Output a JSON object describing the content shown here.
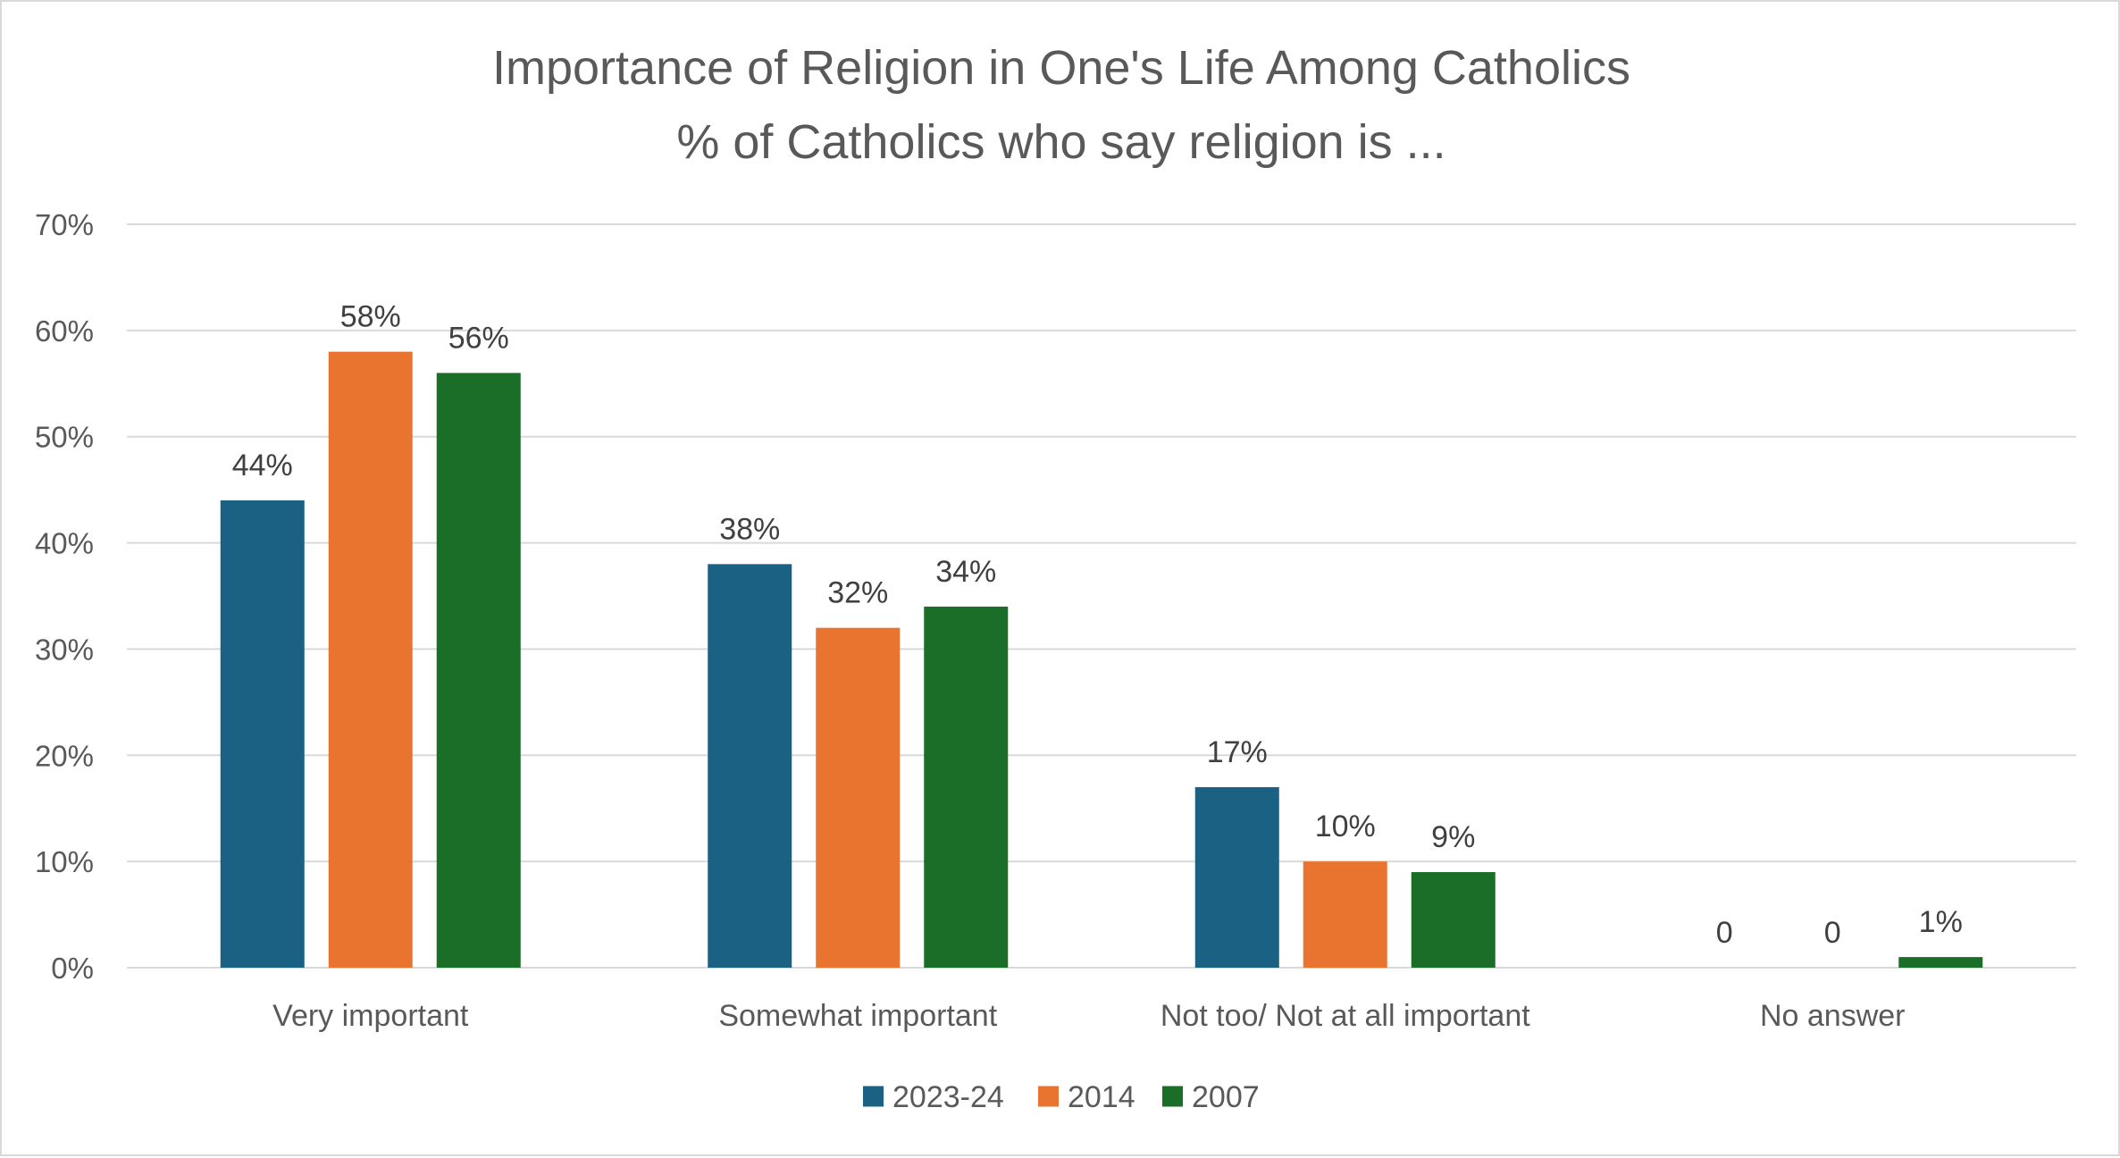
{
  "chart_data": {
    "type": "bar",
    "title": "Importance of Religion in One's Life Among Catholics",
    "subtitle": "% of Catholics who say religion is ...",
    "categories": [
      "Very important",
      "Somewhat important",
      "Not too/ Not at all important",
      "No answer"
    ],
    "series": [
      {
        "name": "2023-24",
        "color": "#1a6184",
        "values": [
          44,
          38,
          17,
          0
        ],
        "labels": [
          "44%",
          "38%",
          "17%",
          "0"
        ]
      },
      {
        "name": "2014",
        "color": "#e97430",
        "values": [
          58,
          32,
          10,
          0
        ],
        "labels": [
          "58%",
          "32%",
          "10%",
          "0"
        ]
      },
      {
        "name": "2007",
        "color": "#1b6e27",
        "values": [
          56,
          34,
          9,
          1
        ],
        "labels": [
          "56%",
          "34%",
          "9%",
          "1%"
        ]
      }
    ],
    "yticks": [
      "0%",
      "10%",
      "20%",
      "30%",
      "40%",
      "50%",
      "60%",
      "70%"
    ],
    "ylim": [
      0,
      70
    ],
    "xlabel": "",
    "ylabel": "",
    "grid": true,
    "legend_position": "bottom"
  }
}
